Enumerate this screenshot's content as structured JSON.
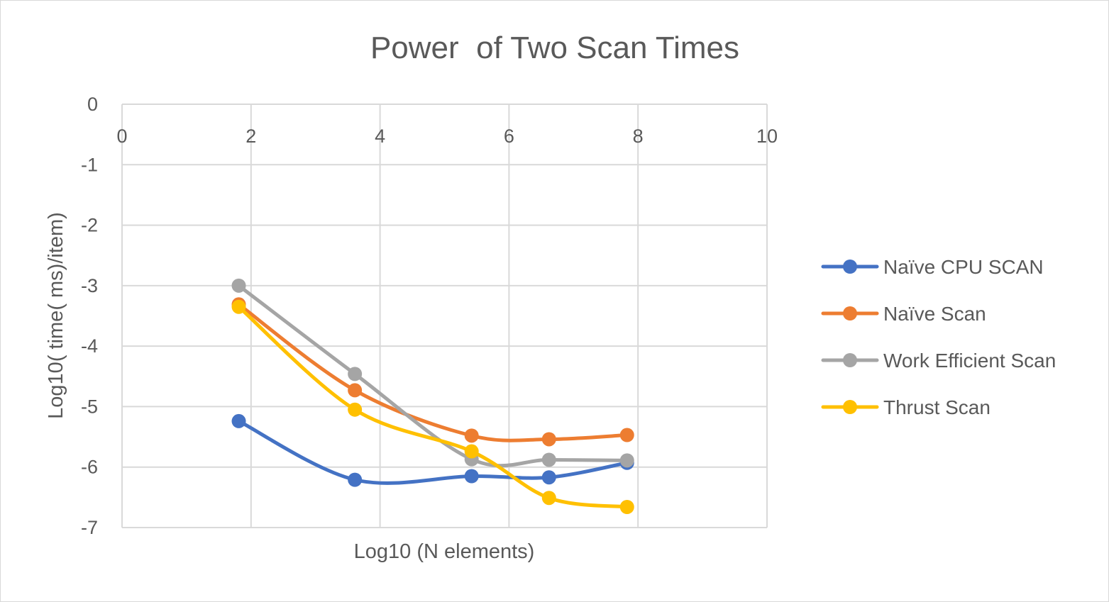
{
  "chart_data": {
    "type": "line",
    "title": "Power  of Two Scan Times",
    "xlabel": "Log10 (N elements)",
    "ylabel": "Log10( time( ms)/item)",
    "xlim": [
      0,
      10
    ],
    "ylim": [
      -7,
      0
    ],
    "x_ticks": [
      0,
      2,
      4,
      6,
      8,
      10
    ],
    "y_ticks": [
      0,
      -1,
      -2,
      -3,
      -4,
      -5,
      -6,
      -7
    ],
    "grid": true,
    "smooth": true,
    "legend_position": "right",
    "series": [
      {
        "name": "Naïve CPU SCAN",
        "color": "#4472C4",
        "x": [
          1.81,
          3.61,
          5.42,
          6.62,
          7.83
        ],
        "y": [
          -5.24,
          -6.21,
          -6.15,
          -6.17,
          -5.93
        ]
      },
      {
        "name": "Naïve Scan",
        "color": "#ED7D31",
        "x": [
          1.81,
          3.61,
          5.42,
          6.62,
          7.83
        ],
        "y": [
          -3.31,
          -4.73,
          -5.48,
          -5.54,
          -5.47
        ]
      },
      {
        "name": "Work Efficient Scan",
        "color": "#A5A5A5",
        "x": [
          1.81,
          3.61,
          5.42,
          6.62,
          7.83
        ],
        "y": [
          -3.0,
          -4.46,
          -5.87,
          -5.88,
          -5.89
        ]
      },
      {
        "name": "Thrust Scan",
        "color": "#FFC000",
        "x": [
          1.81,
          3.61,
          5.42,
          6.62,
          7.83
        ],
        "y": [
          -3.35,
          -5.05,
          -5.74,
          -6.51,
          -6.66
        ]
      }
    ]
  }
}
